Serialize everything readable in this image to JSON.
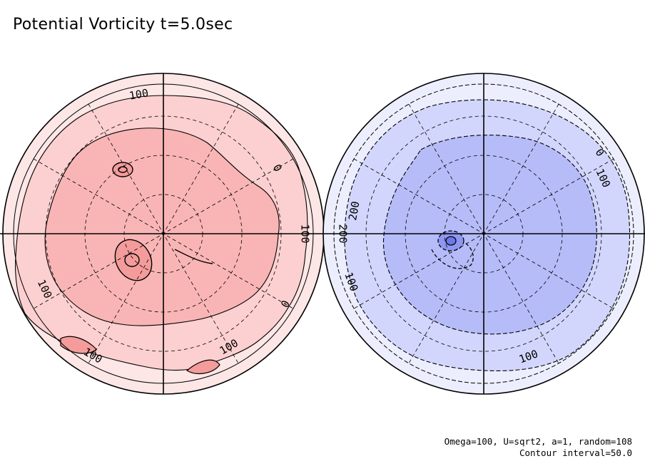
{
  "title": "Potential Vorticity t=5.0sec",
  "footer": {
    "params": "Omega=100, U=sqrt2, a=1, random=108",
    "contour_interval": "Contour interval=50.0"
  },
  "colors": {
    "north_shades": [
      "#fde6e6",
      "#fcd0d0",
      "#f9b5b5",
      "#f49b9b"
    ],
    "south_shades": [
      "#eceefe",
      "#d2d6fc",
      "#b6bcf8",
      "#8f97f2"
    ],
    "line": "#000000"
  },
  "chart_data": [
    {
      "type": "contour",
      "hemisphere": "north",
      "projection": "polar-stereographic",
      "contour_interval": 50.0,
      "contour_labels": [
        {
          "text": "100",
          "angle": -100
        },
        {
          "text": "100",
          "angle": 155
        },
        {
          "text": "100",
          "angle": 0
        },
        {
          "text": "100",
          "angle": 60
        },
        {
          "text": "0",
          "angle": 30
        },
        {
          "text": "0",
          "angle": -30
        },
        {
          "text": "100",
          "angle": 120
        }
      ]
    },
    {
      "type": "contour",
      "hemisphere": "south",
      "projection": "polar-stereographic",
      "contour_interval": 50.0,
      "contour_labels": [
        {
          "text": "0",
          "angle": -35
        },
        {
          "text": "100",
          "angle": -25
        },
        {
          "text": "100",
          "angle": 160
        },
        {
          "text": "100",
          "angle": 70
        },
        {
          "text": "200",
          "angle": 180
        },
        {
          "text": "200",
          "angle": -170
        }
      ]
    }
  ]
}
